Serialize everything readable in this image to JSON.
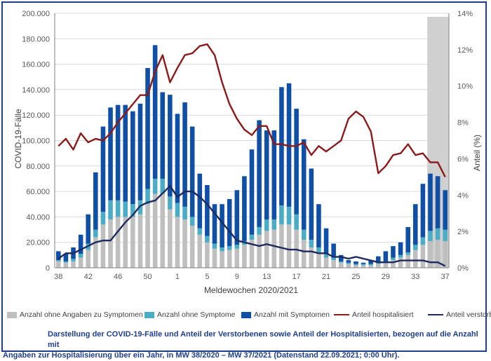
{
  "chart_data": {
    "type": "bar",
    "stacked": true,
    "ylabel": "COVID-19-Fälle",
    "y2label": "Anteil (%)",
    "xlabel": "Meldewochen 2020/2021",
    "ylim": [
      0,
      200000
    ],
    "y2lim": [
      0,
      14
    ],
    "yticks": [
      "0",
      "20.000",
      "40.000",
      "60.000",
      "80.000",
      "100.000",
      "120.000",
      "140.000",
      "160.000",
      "180.000",
      "200.000"
    ],
    "y2ticks": [
      "0%",
      "2%",
      "4%",
      "6%",
      "8%",
      "10%",
      "12%",
      "14%"
    ],
    "xticks": [
      "38",
      "42",
      "46",
      "50",
      "1",
      "5",
      "9",
      "13",
      "17",
      "21",
      "25",
      "29",
      "33",
      "37"
    ],
    "weeks": [
      "38",
      "39",
      "40",
      "41",
      "42",
      "43",
      "44",
      "45",
      "46",
      "47",
      "48",
      "49",
      "50",
      "51",
      "52",
      "53",
      "1",
      "2",
      "3",
      "4",
      "5",
      "6",
      "7",
      "8",
      "9",
      "10",
      "11",
      "12",
      "13",
      "14",
      "15",
      "16",
      "17",
      "18",
      "19",
      "20",
      "21",
      "22",
      "23",
      "24",
      "25",
      "26",
      "27",
      "28",
      "29",
      "30",
      "31",
      "32",
      "33",
      "34",
      "35",
      "36",
      "37"
    ],
    "highlight_weeks": [
      "35",
      "36",
      "37"
    ],
    "series": [
      {
        "name": "Anzahl ohne Angaben zu Symptomen",
        "type": "bar",
        "color": "#bfbfbf",
        "values": [
          5000,
          4000,
          5000,
          8000,
          14000,
          24000,
          34000,
          38000,
          40000,
          40000,
          40000,
          42000,
          50000,
          58000,
          58000,
          46000,
          40000,
          38000,
          33000,
          26000,
          20000,
          15000,
          13000,
          14000,
          15000,
          18000,
          22000,
          26000,
          29000,
          30000,
          34000,
          34000,
          30000,
          22000,
          16000,
          12000,
          8000,
          6000,
          4000,
          3000,
          2000,
          2000,
          2000,
          3000,
          4000,
          6000,
          8000,
          10000,
          14000,
          18000,
          21000,
          22000,
          21000
        ]
      },
      {
        "name": "Anzahl ohne Symptome",
        "type": "bar",
        "color": "#4bacc6",
        "values": [
          1000,
          1000,
          2000,
          3000,
          5000,
          6000,
          10000,
          15000,
          13000,
          12000,
          10000,
          11000,
          12000,
          12000,
          12000,
          10000,
          11000,
          10000,
          7000,
          5000,
          5000,
          4000,
          3000,
          3000,
          3000,
          3000,
          4000,
          6000,
          9000,
          8000,
          15000,
          14000,
          12000,
          8000,
          6000,
          4000,
          3000,
          2000,
          1000,
          1000,
          1000,
          1000,
          1000,
          1000,
          1000,
          2000,
          2000,
          2000,
          4000,
          6000,
          8000,
          9000,
          9000
        ]
      },
      {
        "name": "Anzahl mit Symptomen",
        "type": "bar",
        "color": "#0f4fa6",
        "values": [
          7000,
          6000,
          9000,
          15000,
          23000,
          45000,
          67000,
          73000,
          75000,
          76000,
          73000,
          76000,
          95000,
          105000,
          68000,
          80000,
          70000,
          82000,
          71000,
          43000,
          40000,
          31000,
          34000,
          37000,
          43000,
          51000,
          67000,
          84000,
          70000,
          70000,
          93000,
          97000,
          83000,
          71000,
          56000,
          34000,
          20000,
          11000,
          5000,
          2000,
          2000,
          1000,
          3000,
          5000,
          8000,
          9000,
          10000,
          20000,
          32000,
          42000,
          45000,
          41000,
          31000
        ]
      },
      {
        "name": "Anteil hospitalisiert",
        "type": "line",
        "axis": "right",
        "color": "#8b1a1a",
        "values": [
          6.7,
          7.1,
          6.5,
          7.4,
          6.9,
          7.1,
          7.0,
          7.4,
          8.0,
          8.5,
          9.0,
          9.5,
          9.5,
          10.8,
          11.7,
          10.2,
          11.0,
          11.7,
          11.8,
          12.2,
          12.3,
          11.7,
          10.2,
          9.0,
          8.2,
          7.6,
          7.3,
          7.8,
          7.8,
          6.8,
          6.8,
          6.7,
          6.7,
          6.9,
          6.2,
          6.7,
          6.4,
          6.7,
          7.0,
          8.2,
          8.6,
          8.3,
          7.5,
          5.2,
          5.6,
          6.2,
          6.3,
          6.8,
          6.2,
          6.3,
          5.8,
          5.8,
          5.0
        ]
      },
      {
        "name": "Anteil verstorben",
        "type": "line",
        "axis": "right",
        "color": "#1f2a5e",
        "values": [
          0.5,
          0.8,
          0.8,
          1.0,
          1.2,
          1.4,
          1.5,
          1.5,
          2.0,
          2.5,
          2.9,
          3.4,
          3.6,
          3.7,
          4.1,
          4.5,
          3.9,
          4.2,
          4.2,
          3.9,
          3.5,
          3.0,
          2.5,
          2.0,
          1.5,
          1.4,
          1.3,
          1.2,
          1.3,
          1.2,
          1.1,
          1.0,
          1.0,
          0.9,
          0.9,
          0.8,
          0.8,
          0.6,
          0.6,
          0.5,
          0.6,
          0.5,
          0.4,
          0.3,
          0.3,
          0.3,
          0.4,
          0.4,
          0.4,
          0.4,
          0.3,
          0.3,
          0.1
        ]
      }
    ]
  },
  "legend": {
    "items": [
      {
        "label": "Anzahl ohne Angaben zu Symptomen",
        "color": "#bfbfbf",
        "kind": "box"
      },
      {
        "label": "Anzahl ohne Symptome",
        "color": "#4bacc6",
        "kind": "box"
      },
      {
        "label": "Anzahl mit Symptomen",
        "color": "#0f4fa6",
        "kind": "box"
      },
      {
        "label": "Anteil hospitalisiert",
        "color": "#8b1a1a",
        "kind": "line"
      },
      {
        "label": "Anteil verstorben",
        "color": "#1f2a5e",
        "kind": "line"
      }
    ]
  },
  "caption": {
    "line1": "Darstellung der COVID-19-Fälle und Anteil der Verstorbenen sowie Anteil der Hospitalisierten, bezogen auf die Anzahl mit",
    "line2": "Angaben zur Hospitalisierung über ein Jahr, in MW 38/2020 – MW 37/2021 (Datenstand 22.09.2021; 0:00 Uhr)."
  }
}
